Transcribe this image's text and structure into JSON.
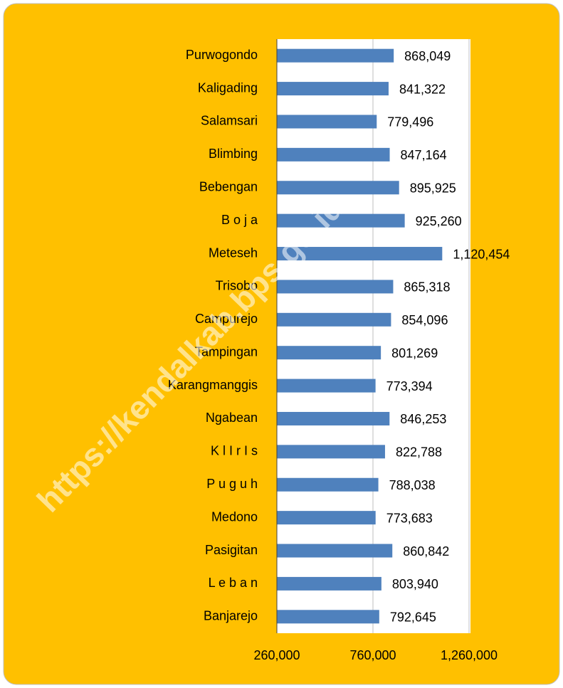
{
  "chart_data": {
    "type": "bar",
    "orientation": "horizontal",
    "watermark": "https://kendalkab.bps.go.id",
    "categories": [
      "Purwogondo",
      "Kaligading",
      "Salamsari",
      "Blimbing",
      "Bebengan",
      "B o j a",
      "Meteseh",
      "Trisobo",
      "Campurejo",
      "Tampingan",
      "Karangmanggis",
      "Ngabean",
      "K l I r I s",
      "P u g u h",
      "Medono",
      "Pasigitan",
      "L e b a n",
      "Banjarejo"
    ],
    "values": [
      868049,
      841322,
      779496,
      847164,
      895925,
      925260,
      1120454,
      865318,
      854096,
      801269,
      773394,
      846253,
      822788,
      788038,
      773683,
      860842,
      803940,
      792645
    ],
    "value_labels": [
      "868,049",
      "841,322",
      "779,496",
      "847,164",
      "895,925",
      "925,260",
      "1,120,454",
      "865,318",
      "854,096",
      "801,269",
      "773,394",
      "846,253",
      "822,788",
      "788,038",
      "773,683",
      "860,842",
      "803,940",
      "792,645"
    ],
    "color": "#4f81bd",
    "xlim": [
      260000,
      1260000
    ],
    "xticks": [
      {
        "value": 260000,
        "label": "260,000"
      },
      {
        "value": 760000,
        "label": "760,000"
      },
      {
        "value": 1260000,
        "label": "1,260,000"
      }
    ],
    "grid": true
  }
}
